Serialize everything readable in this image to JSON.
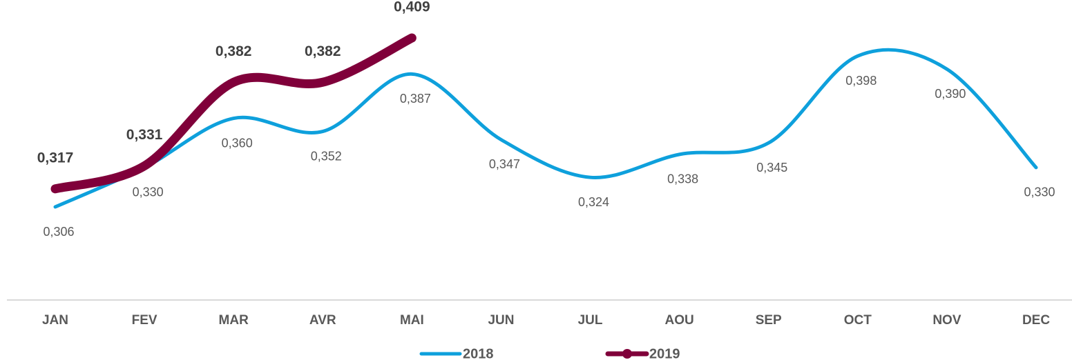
{
  "chart_data": {
    "type": "line",
    "categories": [
      "JAN",
      "FEV",
      "MAR",
      "AVR",
      "MAI",
      "JUN",
      "JUL",
      "AOU",
      "SEP",
      "OCT",
      "NOV",
      "DEC"
    ],
    "series": [
      {
        "name": "2018",
        "color": "#0ea0dc",
        "values": [
          0.306,
          0.33,
          0.36,
          0.352,
          0.387,
          0.347,
          0.324,
          0.338,
          0.345,
          0.398,
          0.39,
          0.33
        ],
        "value_labels": [
          "0,306",
          "0,330",
          "0,360",
          "0,352",
          "0,387",
          "0,347",
          "0,324",
          "0,338",
          "0,345",
          "0,398",
          "0,390",
          "0,330"
        ]
      },
      {
        "name": "2019",
        "color": "#80003a",
        "values": [
          0.317,
          0.331,
          0.382,
          0.382,
          0.409,
          null,
          null,
          null,
          null,
          null,
          null,
          null
        ],
        "value_labels": [
          "0,317",
          "0,331",
          "0,382",
          "0,382",
          "0,409",
          null,
          null,
          null,
          null,
          null,
          null,
          null
        ]
      }
    ]
  }
}
